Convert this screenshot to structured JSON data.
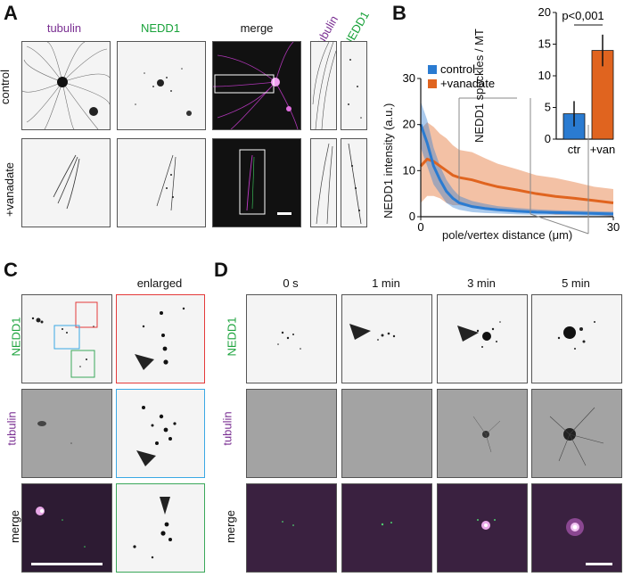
{
  "panel_letters": [
    "A",
    "B",
    "C",
    "D"
  ],
  "panelA": {
    "columns": [
      "tubulin",
      "NEDD1",
      "merge"
    ],
    "enlarged_columns": [
      "tubulin",
      "NEDD1"
    ],
    "rows": [
      "control",
      "+vanadate"
    ]
  },
  "panelB": {
    "legend": [
      "control",
      "+vanadate"
    ],
    "colors": {
      "control": "#2a7bd1",
      "vanadate": "#e0641f"
    },
    "inset": {
      "ylabel": "NEDD1 speckles / MT",
      "pvalue": "p<0,001",
      "categories": [
        "ctr",
        "+van"
      ]
    },
    "ylabel": "NEDD1 intensity (a.u.)",
    "xlabel": "pole/vertex distance (μm)"
  },
  "panelC": {
    "header": "enlarged",
    "rows": [
      "NEDD1",
      "tubulin",
      "merge"
    ]
  },
  "panelD": {
    "timepoints": [
      "0 s",
      "1 min",
      "3 min",
      "5 min"
    ],
    "rows": [
      "NEDD1",
      "tubulin",
      "merge"
    ]
  },
  "chart_data": [
    {
      "type": "line",
      "x": [
        0,
        1,
        2,
        3,
        4,
        5,
        6,
        8,
        10,
        12,
        15,
        18,
        21,
        24,
        27,
        30
      ],
      "xlim": [
        0,
        30
      ],
      "ylim": [
        0,
        30
      ],
      "xticks": [
        0,
        30
      ],
      "yticks": [
        0,
        10,
        20,
        30
      ],
      "series": [
        {
          "name": "control",
          "values": [
            20,
            16,
            11,
            8,
            5.5,
            4,
            3,
            2.2,
            1.8,
            1.5,
            1.2,
            1,
            0.9,
            0.8,
            0.7,
            0.6
          ],
          "band": [
            5,
            5,
            4,
            3,
            2.5,
            2,
            1.5,
            1.2,
            1,
            0.8,
            0.7,
            0.6,
            0.5,
            0.5,
            0.5,
            0.5
          ]
        },
        {
          "name": "+vanadate",
          "values": [
            11,
            12.5,
            12,
            11,
            10,
            9,
            8.5,
            8,
            7.2,
            6.5,
            5.8,
            5,
            4.4,
            4,
            3.5,
            3
          ],
          "band": [
            8,
            8,
            7.5,
            7,
            7,
            6.5,
            6,
            6,
            5.5,
            5,
            4.5,
            4,
            4,
            3.5,
            3,
            3
          ]
        }
      ]
    },
    {
      "type": "bar",
      "categories": [
        "ctr",
        "+van"
      ],
      "values": [
        4,
        14
      ],
      "errors": [
        2,
        2.5
      ],
      "ylim": [
        0,
        20
      ],
      "yticks": [
        0,
        5,
        10,
        15,
        20
      ]
    }
  ]
}
